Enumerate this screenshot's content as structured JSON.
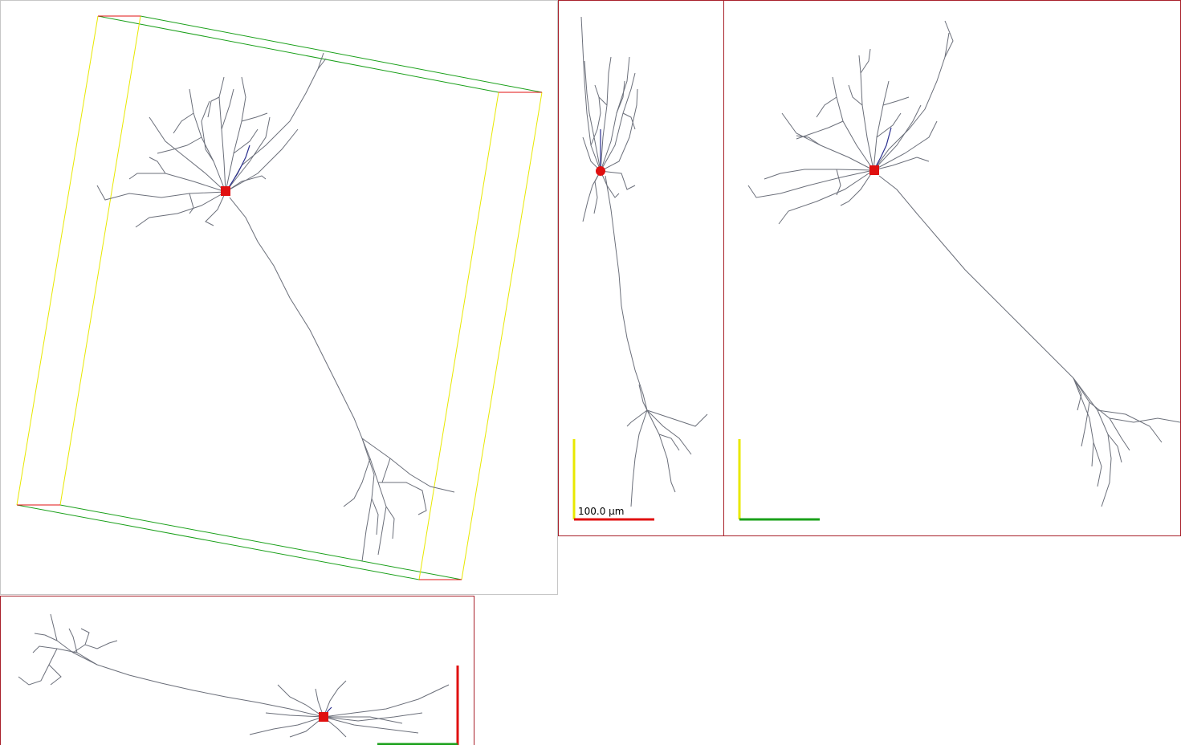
{
  "scale_bar": {
    "label": "100.0 µm"
  },
  "colors": {
    "panel_border": "#a8202a",
    "dendrite": "#6b6f7a",
    "apical": "#2a2f8f",
    "soma": "#e01010",
    "axis_x": "#e01010",
    "axis_y": "#e8e800",
    "axis_z": "#1aa01a",
    "bbox_edge_x": "#e01010",
    "bbox_edge_y": "#e8e800",
    "bbox_edge_z": "#1aa01a"
  },
  "views": [
    {
      "id": "perspective-3d",
      "axes": []
    },
    {
      "id": "side-view",
      "axes": [
        "x",
        "y"
      ]
    },
    {
      "id": "front-view",
      "axes": [
        "y",
        "z"
      ]
    },
    {
      "id": "top-view",
      "axes": [
        "x",
        "z"
      ]
    }
  ]
}
